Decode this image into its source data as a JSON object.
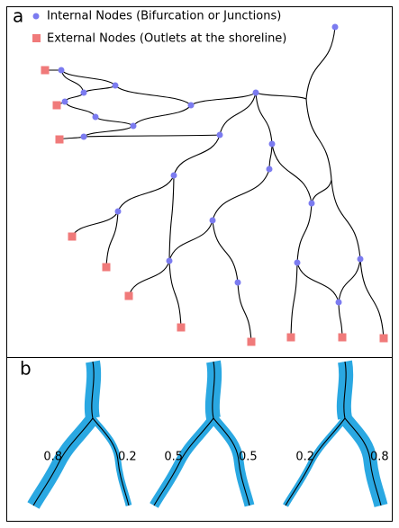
{
  "panel_a": {
    "label": "a",
    "legend": [
      {
        "text": "Internal Nodes  (Bifurcation or Junctions)"
      },
      {
        "text": "External Nodes  (Outlets at the shoreline)"
      }
    ]
  },
  "panel_b": {
    "label": "b",
    "splits": [
      {
        "left": 0.8,
        "right": 0.2
      },
      {
        "left": 0.5,
        "right": 0.5
      },
      {
        "left": 0.2,
        "right": 0.8
      }
    ]
  }
}
